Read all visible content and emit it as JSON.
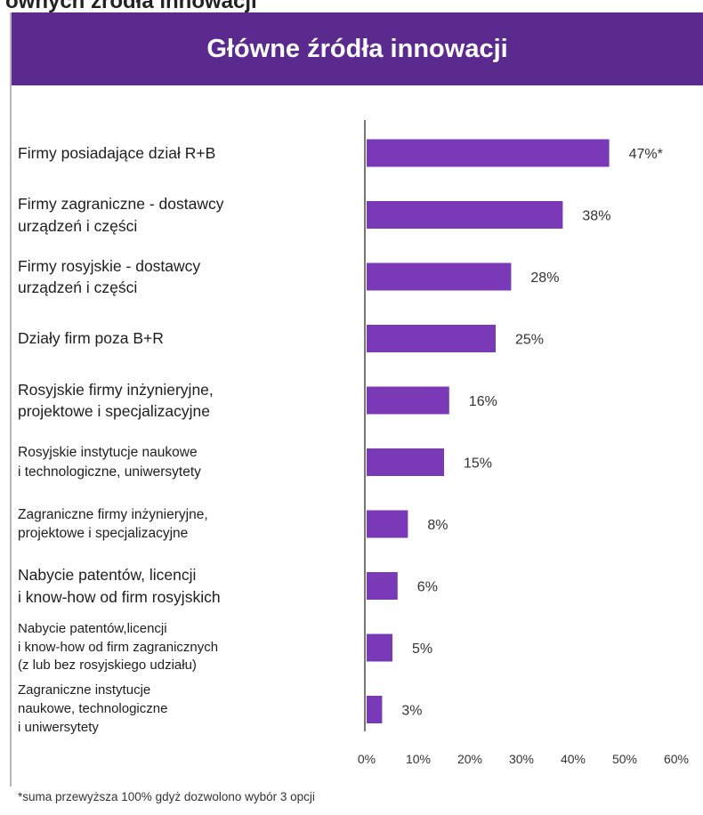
{
  "header_text": "ównych źródła innowacji",
  "chart_data": {
    "type": "bar",
    "orientation": "horizontal",
    "title": "Główne źródła innowacji",
    "xlabel": "",
    "ylabel": "",
    "xlim": [
      0,
      60
    ],
    "x_ticks": [
      "0%",
      "10%",
      "20%",
      "30%",
      "40%",
      "50%",
      "60%"
    ],
    "grid": false,
    "legend": "none",
    "bar_color": "#7a3ab8",
    "categories": [
      [
        "Firmy posiadające dział R+B"
      ],
      [
        "Firmy zagraniczne - dostawcy",
        "urządzeń i części"
      ],
      [
        "Firmy rosyjskie - dostawcy",
        "urządzeń i części"
      ],
      [
        "Działy firm poza B+R"
      ],
      [
        "Rosyjskie firmy inżynieryjne,",
        "projektowe i specjalizacyjne"
      ],
      [
        "Rosyjskie instytucje naukowe",
        "i technologiczne, uniwersytety"
      ],
      [
        "Zagraniczne firmy inżynieryjne,",
        "projektowe i specjalizacyjne"
      ],
      [
        "Nabycie patentów, licencji",
        "i know-how od firm rosyjskich"
      ],
      [
        "Nabycie patentów,licencji",
        "i know-how od firm zagranicznych",
        "(z lub bez rosyjskiego udziału)"
      ],
      [
        "Zagraniczne instytucje",
        "naukowe, technologiczne",
        "i uniwersytety"
      ]
    ],
    "values": [
      47,
      38,
      28,
      25,
      16,
      15,
      8,
      6,
      5,
      3
    ],
    "value_labels": [
      "47%*",
      "38%",
      "28%",
      "25%",
      "16%",
      "15%",
      "8%",
      "6%",
      "5%",
      "3%"
    ]
  },
  "footnote": "*suma przewyższa 100% gdyż dozwolono wybór 3 opcji"
}
